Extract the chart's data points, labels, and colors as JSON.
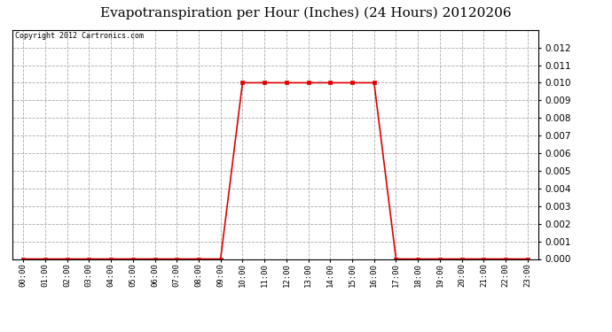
{
  "title": "Evapotranspiration per Hour (Inches) (24 Hours) 20120206",
  "copyright_text": "Copyright 2012 Cartronics.com",
  "x_labels": [
    "00:00",
    "01:00",
    "02:00",
    "03:00",
    "04:00",
    "05:00",
    "06:00",
    "07:00",
    "08:00",
    "09:00",
    "10:00",
    "11:00",
    "12:00",
    "13:00",
    "14:00",
    "15:00",
    "16:00",
    "17:00",
    "18:00",
    "19:00",
    "20:00",
    "21:00",
    "22:00",
    "23:00"
  ],
  "hours": [
    0,
    1,
    2,
    3,
    4,
    5,
    6,
    7,
    8,
    9,
    10,
    11,
    12,
    13,
    14,
    15,
    16,
    17,
    18,
    19,
    20,
    21,
    22,
    23
  ],
  "values": [
    0.0,
    0.0,
    0.0,
    0.0,
    0.0,
    0.0,
    0.0,
    0.0,
    0.0,
    0.0,
    0.01,
    0.01,
    0.01,
    0.01,
    0.01,
    0.01,
    0.01,
    0.0,
    0.0,
    0.0,
    0.0,
    0.0,
    0.0,
    0.0
  ],
  "line_color": "#dd0000",
  "marker": "s",
  "marker_size": 3,
  "grid_color": "#aaaaaa",
  "grid_linestyle": "--",
  "background_color": "#ffffff",
  "title_fontsize": 11,
  "ylim": [
    0,
    0.013
  ],
  "yticks": [
    0.0,
    0.001,
    0.002,
    0.003,
    0.004,
    0.005,
    0.006,
    0.007,
    0.008,
    0.009,
    0.01,
    0.011,
    0.012
  ],
  "fig_width": 6.9,
  "fig_height": 3.75,
  "dpi": 100
}
